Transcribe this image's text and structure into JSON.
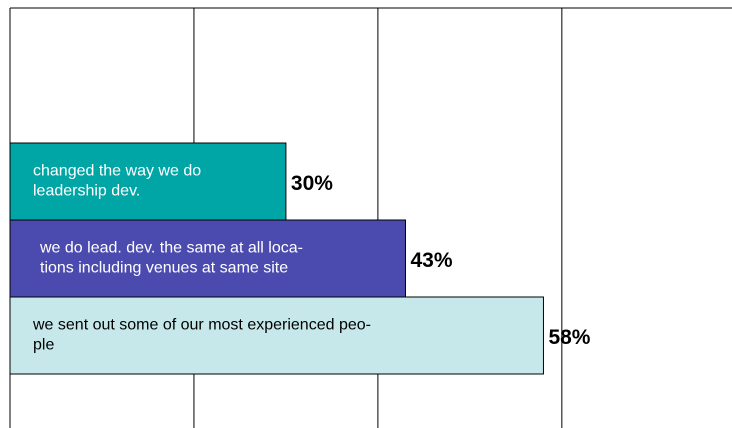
{
  "chart_data": {
    "type": "hbar",
    "categories": [
      [
        "changed the way we do",
        "leadership dev."
      ],
      [
        "we do lead. dev. the same at all loca-",
        "tions including venues at same site"
      ],
      [
        "we sent out some of our most experienced peo-",
        "ple"
      ]
    ],
    "values": [
      30,
      43,
      58
    ],
    "value_labels": [
      "30%",
      "43%",
      "58%"
    ],
    "colors": [
      "#00a6a6",
      "#4b4aae",
      "#c6e8ea"
    ],
    "label_colors": [
      "#ffffff",
      "#ffffff",
      "#000000"
    ],
    "xlim": [
      0,
      78.5
    ],
    "xticks": [
      0,
      20,
      40,
      60
    ],
    "grid": true
  }
}
